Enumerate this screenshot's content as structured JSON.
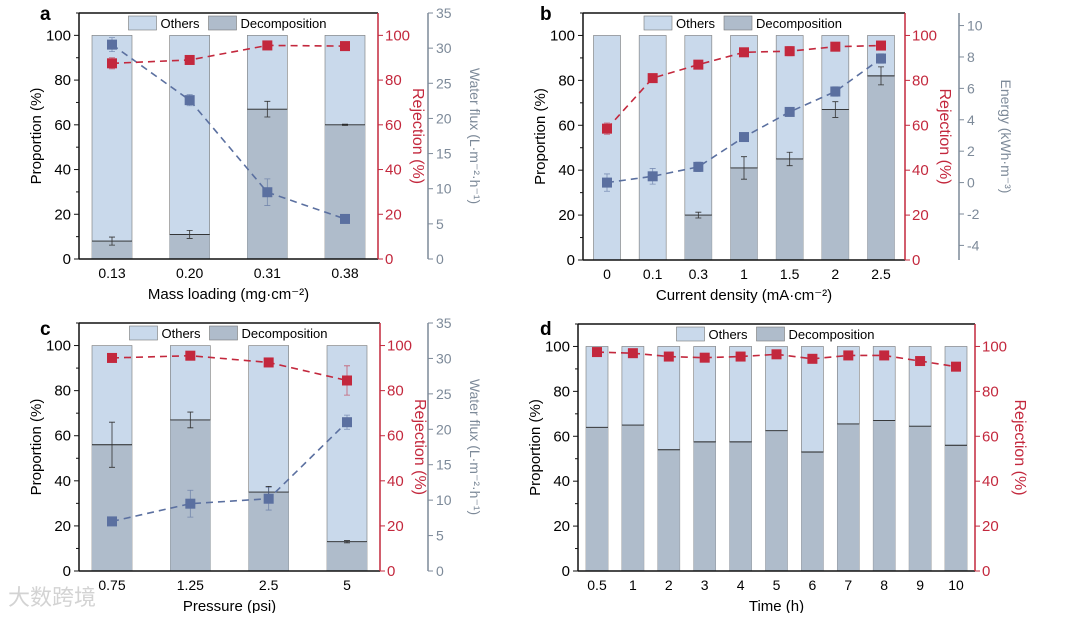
{
  "colors": {
    "others": "#c9d9eb",
    "decomposition": "#afbccb",
    "rejection": "#c3283d",
    "secondary": "#5b70a0",
    "secondary_axis": "#7d8a99",
    "axis": "#111111"
  },
  "watermark": "大数跨境",
  "chart_data": [
    {
      "panel": "a",
      "type": "bar",
      "xlabel": "Mass loading (mg·cm⁻²)",
      "ylabel": "Proportion (%)",
      "ylabel2": "Rejection (%)",
      "ylabel3": "Water flux (L·m⁻²·h⁻¹)",
      "categories": [
        "0.13",
        "0.20",
        "0.31",
        "0.38"
      ],
      "legend": [
        "Others",
        "Decomposition"
      ],
      "legend_position": "top-center",
      "ylim": [
        0,
        110
      ],
      "yticks": [
        "0",
        "20",
        "40",
        "60",
        "80",
        "100"
      ],
      "y2ticks": [
        "0",
        "20",
        "40",
        "60",
        "80",
        "100"
      ],
      "y3lim": [
        0,
        35
      ],
      "y3ticks": [
        "0",
        "5",
        "10",
        "15",
        "20",
        "25",
        "30",
        "35"
      ],
      "decomposition": [
        8,
        11,
        67,
        60
      ],
      "decomposition_err": [
        1.8,
        1.8,
        3.5,
        0.3
      ],
      "rejection": [
        87.5,
        89,
        95.5,
        95.2
      ],
      "rejection_err": [
        2.5,
        1,
        0.8,
        0.8
      ],
      "secondary": [
        30.5,
        22.6,
        9.5,
        5.7
      ],
      "secondary_err": [
        1,
        0.8,
        1.9,
        0.3
      ]
    },
    {
      "panel": "b",
      "type": "bar",
      "xlabel": "Current density (mA·cm⁻²)",
      "ylabel": "Proportion (%)",
      "ylabel2": "Rejection (%)",
      "ylabel3": "Energy (kWh·m⁻³)",
      "categories": [
        "0",
        "0.1",
        "0.3",
        "1",
        "1.5",
        "2",
        "2.5"
      ],
      "legend": [
        "Others",
        "Decomposition"
      ],
      "legend_position": "top-center",
      "ylim": [
        0,
        110
      ],
      "yticks": [
        "0",
        "20",
        "40",
        "60",
        "80",
        "100"
      ],
      "y2ticks": [
        "0",
        "20",
        "40",
        "60",
        "80",
        "100"
      ],
      "y3lim": [
        -4.93,
        10.8
      ],
      "y3ticks": [
        "-4",
        "-2",
        "0",
        "2",
        "4",
        "6",
        "8",
        "10"
      ],
      "decomposition": [
        0,
        0,
        20,
        41,
        45,
        67,
        82
      ],
      "decomposition_err": [
        0,
        0,
        1.3,
        5,
        3,
        3.5,
        4
      ],
      "rejection": [
        58.5,
        81,
        87,
        92.5,
        93,
        95,
        95.5
      ],
      "rejection_err": [
        2.5,
        1.5,
        0.8,
        1.2,
        2,
        0.6,
        0.6
      ],
      "secondary": [
        0,
        0.4,
        1,
        2.9,
        4.5,
        5.8,
        7.9
      ],
      "secondary_err": [
        0.55,
        0.5,
        0.3,
        0.2,
        0.2,
        0.3,
        0.3
      ]
    },
    {
      "panel": "c",
      "type": "bar",
      "xlabel": "Pressure (psi)",
      "ylabel": "Proportion (%)",
      "ylabel2": "Rejection (%)",
      "ylabel3": "Water flux (L·m⁻²·h⁻¹)",
      "categories": [
        "0.75",
        "1.25",
        "2.5",
        "5"
      ],
      "legend": [
        "Others",
        "Decomposition"
      ],
      "legend_position": "top-center",
      "ylim": [
        0,
        110
      ],
      "yticks": [
        "0",
        "20",
        "40",
        "60",
        "80",
        "100"
      ],
      "y2ticks": [
        "0",
        "20",
        "40",
        "60",
        "80",
        "100"
      ],
      "y3lim": [
        0,
        35
      ],
      "y3ticks": [
        "0",
        "5",
        "10",
        "15",
        "20",
        "25",
        "30",
        "35"
      ],
      "decomposition": [
        56,
        67,
        35,
        13
      ],
      "decomposition_err": [
        10,
        3.5,
        2.5,
        0.5
      ],
      "rejection": [
        94.5,
        95.5,
        92.5,
        84.5
      ],
      "rejection_err": [
        0.6,
        0.6,
        0.8,
        6.5
      ],
      "secondary": [
        7,
        9.5,
        10.2,
        21
      ],
      "secondary_err": [
        0.3,
        1.9,
        1.6,
        1
      ]
    },
    {
      "panel": "d",
      "type": "bar",
      "xlabel": "Time (h)",
      "ylabel": "Proportion (%)",
      "ylabel2": "Rejection (%)",
      "categories": [
        "0.5",
        "1",
        "2",
        "3",
        "4",
        "5",
        "6",
        "7",
        "8",
        "9",
        "10"
      ],
      "legend": [
        "Others",
        "Decomposition"
      ],
      "legend_position": "top-center",
      "ylim": [
        0,
        110
      ],
      "yticks": [
        "0",
        "20",
        "40",
        "60",
        "80",
        "100"
      ],
      "y2ticks": [
        "0",
        "20",
        "40",
        "60",
        "80",
        "100"
      ],
      "decomposition": [
        64,
        65,
        54,
        57.5,
        57.5,
        62.5,
        53,
        65.5,
        67,
        64.5,
        56
      ],
      "rejection": [
        97.5,
        97,
        95.5,
        95,
        95.5,
        96.5,
        94.5,
        96,
        96,
        93.5,
        91
      ]
    }
  ]
}
